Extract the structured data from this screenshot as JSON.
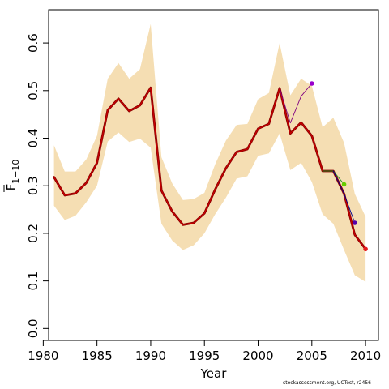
{
  "chart_data": {
    "type": "line",
    "xlabel": "Year",
    "ylabel": "F",
    "ylabel_subscript": "1−10",
    "xlim": [
      1980.5,
      2011.2
    ],
    "ylim": [
      -0.025,
      0.67
    ],
    "x_ticks": [
      1980,
      1985,
      1990,
      1995,
      2000,
      2005,
      2010
    ],
    "y_ticks": [
      0.0,
      0.1,
      0.2,
      0.3,
      0.4,
      0.5,
      0.6
    ],
    "y_tick_labels": [
      "0.0",
      "0.1",
      "0.2",
      "0.3",
      "0.4",
      "0.5",
      "0.6"
    ],
    "grid": false,
    "band": {
      "color": "#f5deb3",
      "x": [
        1981,
        1982,
        1983,
        1984,
        1985,
        1986,
        1987,
        1988,
        1989,
        1990,
        1991,
        1992,
        1993,
        1994,
        1995,
        1996,
        1997,
        1998,
        1999,
        2000,
        2001,
        2002,
        2003,
        2004,
        2005,
        2006,
        2007,
        2008,
        2009,
        2010
      ],
      "upper": [
        0.385,
        0.33,
        0.33,
        0.355,
        0.405,
        0.525,
        0.558,
        0.525,
        0.545,
        0.64,
        0.36,
        0.305,
        0.27,
        0.272,
        0.285,
        0.345,
        0.395,
        0.428,
        0.43,
        0.482,
        0.495,
        0.6,
        0.49,
        0.525,
        0.51,
        0.423,
        0.443,
        0.39,
        0.283,
        0.235
      ],
      "lower": [
        0.258,
        0.228,
        0.237,
        0.265,
        0.3,
        0.393,
        0.412,
        0.392,
        0.399,
        0.38,
        0.22,
        0.185,
        0.165,
        0.175,
        0.2,
        0.24,
        0.275,
        0.315,
        0.32,
        0.363,
        0.368,
        0.41,
        0.333,
        0.348,
        0.308,
        0.24,
        0.22,
        0.165,
        0.112,
        0.098
      ]
    },
    "series": [
      {
        "color": "#8b0000",
        "width": 2.8,
        "x": [
          1981,
          1982,
          1983,
          1984,
          1985,
          1986,
          1987,
          1988,
          1989,
          1990,
          1991,
          1992,
          1993,
          1994,
          1995,
          1996,
          1997,
          1998,
          1999,
          2000,
          2001,
          2002,
          2003,
          2004,
          2005,
          2006,
          2007,
          2008,
          2009,
          2010
        ],
        "y": [
          0.318,
          0.28,
          0.284,
          0.306,
          0.348,
          0.459,
          0.483,
          0.457,
          0.469,
          0.506,
          0.29,
          0.246,
          0.218,
          0.222,
          0.242,
          0.292,
          0.337,
          0.371,
          0.377,
          0.42,
          0.43,
          0.505,
          0.41,
          0.433,
          0.405,
          0.331,
          0.331,
          0.283,
          0.197,
          0.167
        ]
      },
      {
        "color": "#cc0000",
        "width": 1.1,
        "x": [
          1981,
          1982,
          1983,
          1984,
          1985,
          1986,
          1987,
          1988,
          1989,
          1990,
          1991,
          1992,
          1993,
          1994,
          1995,
          1996,
          1997,
          1998,
          1999,
          2000,
          2001,
          2002,
          2003,
          2004,
          2005,
          2006,
          2007,
          2008,
          2009,
          2010
        ],
        "y": [
          0.318,
          0.28,
          0.284,
          0.306,
          0.348,
          0.459,
          0.483,
          0.457,
          0.469,
          0.506,
          0.29,
          0.246,
          0.218,
          0.222,
          0.242,
          0.292,
          0.337,
          0.371,
          0.377,
          0.42,
          0.43,
          0.505,
          0.41,
          0.433,
          0.405,
          0.331,
          0.331,
          0.283,
          0.197,
          0.167
        ],
        "endpoint": 0.167
      },
      {
        "color": "#800080",
        "width": 0.9,
        "x": [
          2002,
          2003,
          2004,
          2005
        ],
        "y": [
          0.505,
          0.432,
          0.488,
          0.515
        ],
        "endpoint": 0.515
      },
      {
        "color": "#228b22",
        "width": 0.9,
        "x": [
          2006,
          2007,
          2008
        ],
        "y": [
          0.331,
          0.331,
          0.303
        ],
        "endpoint": 0.303
      },
      {
        "color": "#00008b",
        "width": 0.9,
        "x": [
          2007,
          2008,
          2009
        ],
        "y": [
          0.331,
          0.283,
          0.222
        ],
        "endpoint": 0.222
      }
    ],
    "endpoint_colors": [
      "#e41a1c",
      "#9900cc",
      "#66cc00",
      "#5500aa"
    ]
  },
  "footer_note": "stockassessment.org, UCTest, r2456"
}
